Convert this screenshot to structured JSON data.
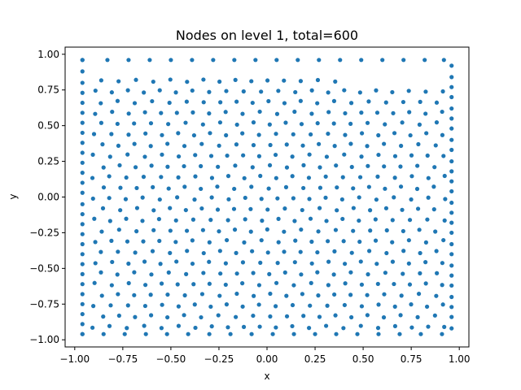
{
  "chart_data": {
    "type": "scatter",
    "title": "Nodes on level 1, total=600",
    "xlabel": "x",
    "ylabel": "y",
    "xlim": [
      -1.05,
      1.05
    ],
    "ylim": [
      -1.05,
      1.05
    ],
    "xticks": [
      -1.0,
      -0.75,
      -0.5,
      -0.25,
      0.0,
      0.25,
      0.5,
      0.75,
      1.0
    ],
    "xtick_labels": [
      "−1.00",
      "−0.75",
      "−0.50",
      "−0.25",
      "0.00",
      "0.25",
      "0.50",
      "0.75",
      "1.00"
    ],
    "yticks": [
      -1.0,
      -0.75,
      -0.5,
      -0.25,
      0.0,
      0.25,
      0.5,
      0.75,
      1.0
    ],
    "ytick_labels": [
      "−1.00",
      "−0.75",
      "−0.50",
      "−0.25",
      "0.00",
      "0.25",
      "0.50",
      "0.75",
      "1.00"
    ],
    "grid": false,
    "marker_color": "#1f77b4",
    "total_points": 600,
    "point_distribution": "quasi-uniform node set filling the square [-0.96, 0.96] x [-0.96, 0.96]; boundary rows at x=±0.96 and y=±0.96 with interior hexagonal-like spacing of about 0.07",
    "x_range_of_points": [
      -0.96,
      0.96
    ],
    "y_range_of_points": [
      -0.96,
      0.96
    ],
    "boundary_points": {
      "left_x": [
        -0.96,
        -0.96,
        -0.96,
        -0.96,
        -0.96,
        -0.96,
        -0.96,
        -0.96,
        -0.96,
        -0.96,
        -0.96,
        -0.96,
        -0.96,
        -0.96,
        -0.96,
        -0.96,
        -0.96,
        -0.96,
        -0.96,
        -0.96,
        -0.96,
        -0.96,
        -0.96,
        -0.96,
        -0.96,
        -0.96,
        -0.96,
        -0.96
      ],
      "left_y": [
        -0.96,
        -0.89,
        -0.82,
        -0.75,
        -0.68,
        -0.61,
        -0.54,
        -0.47,
        -0.4,
        -0.33,
        -0.26,
        -0.19,
        -0.12,
        -0.05,
        0.03,
        0.1,
        0.17,
        0.24,
        0.31,
        0.38,
        0.45,
        0.52,
        0.59,
        0.66,
        0.73,
        0.8,
        0.88,
        0.96
      ],
      "right_x": [
        0.96,
        0.96,
        0.96,
        0.96,
        0.96,
        0.96,
        0.96,
        0.96,
        0.96,
        0.96,
        0.96,
        0.96,
        0.96,
        0.96,
        0.96,
        0.96,
        0.96,
        0.96,
        0.96,
        0.96,
        0.96,
        0.96,
        0.96,
        0.96,
        0.96,
        0.96
      ],
      "right_y": [
        -0.92,
        -0.84,
        -0.77,
        -0.7,
        -0.62,
        -0.55,
        -0.48,
        -0.4,
        -0.33,
        -0.25,
        -0.18,
        -0.11,
        -0.04,
        0.04,
        0.11,
        0.18,
        0.25,
        0.33,
        0.4,
        0.48,
        0.55,
        0.62,
        0.7,
        0.77,
        0.84,
        0.92
      ],
      "top_x": [
        -0.96,
        -0.83,
        -0.72,
        -0.61,
        -0.5,
        -0.39,
        -0.28,
        -0.17,
        -0.06,
        0.05,
        0.16,
        0.27,
        0.38,
        0.49,
        0.6,
        0.71,
        0.82,
        0.92
      ],
      "top_y": [
        0.96,
        0.96,
        0.96,
        0.96,
        0.96,
        0.96,
        0.96,
        0.96,
        0.96,
        0.96,
        0.96,
        0.96,
        0.96,
        0.96,
        0.96,
        0.96,
        0.96,
        0.96
      ],
      "bottom_x": [
        -0.96,
        -0.85,
        -0.74,
        -0.63,
        -0.52,
        -0.41,
        -0.3,
        -0.19,
        -0.08,
        0.03,
        0.14,
        0.25,
        0.36,
        0.47,
        0.58,
        0.69,
        0.8,
        0.91
      ],
      "bottom_y": [
        -0.96,
        -0.96,
        -0.96,
        -0.96,
        -0.96,
        -0.96,
        -0.96,
        -0.96,
        -0.96,
        -0.96,
        -0.96,
        -0.96,
        -0.96,
        -0.96,
        -0.96,
        -0.96,
        -0.96,
        -0.96
      ]
    }
  }
}
